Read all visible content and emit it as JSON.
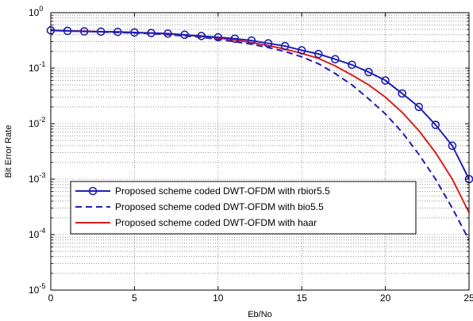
{
  "chart_data": {
    "type": "line",
    "title": "",
    "xlabel": "Eb/No",
    "ylabel": "Bit Error Rate",
    "xlim": [
      0,
      25
    ],
    "ylim": [
      1e-05,
      1
    ],
    "yscale": "log",
    "grid": true,
    "legend_position": "lower-left",
    "x_ticks": [
      0,
      5,
      10,
      15,
      20,
      25
    ],
    "y_ticks": [
      {
        "base": "10",
        "exp": "-5",
        "value": 1e-05
      },
      {
        "base": "10",
        "exp": "-4",
        "value": 0.0001
      },
      {
        "base": "10",
        "exp": "-3",
        "value": 0.001
      },
      {
        "base": "10",
        "exp": "-2",
        "value": 0.01
      },
      {
        "base": "10",
        "exp": "-1",
        "value": 0.1
      },
      {
        "base": "10",
        "exp": "0",
        "value": 1
      }
    ],
    "series": [
      {
        "name": "Proposed scheme coded DWT-OFDM with rbior5.5",
        "color": "#1f1fb4",
        "style": "solid-circle",
        "x": [
          0,
          1,
          2,
          3,
          4,
          5,
          6,
          7,
          8,
          9,
          10,
          11,
          12,
          13,
          14,
          15,
          16,
          17,
          18,
          19,
          20,
          21,
          22,
          23,
          24,
          25
        ],
        "y": [
          0.48,
          0.47,
          0.46,
          0.455,
          0.45,
          0.44,
          0.43,
          0.42,
          0.4,
          0.38,
          0.36,
          0.34,
          0.315,
          0.28,
          0.25,
          0.21,
          0.18,
          0.145,
          0.115,
          0.085,
          0.06,
          0.035,
          0.02,
          0.0095,
          0.004,
          0.001
        ]
      },
      {
        "name": "Proposed scheme coded DWT-OFDM with bio5.5",
        "color": "#1f1fb4",
        "style": "dashed",
        "x": [
          0,
          1,
          2,
          3,
          4,
          5,
          6,
          7,
          8,
          9,
          10,
          11,
          12,
          13,
          14,
          15,
          16,
          17,
          18,
          19,
          20,
          21,
          22,
          23,
          24,
          25
        ],
        "y": [
          0.48,
          0.47,
          0.46,
          0.45,
          0.44,
          0.43,
          0.42,
          0.4,
          0.38,
          0.36,
          0.33,
          0.3,
          0.27,
          0.235,
          0.2,
          0.16,
          0.12,
          0.08,
          0.05,
          0.028,
          0.015,
          0.007,
          0.0028,
          0.001,
          0.0003,
          8e-05
        ]
      },
      {
        "name": "Proposed scheme coded DWT-OFDM with haar",
        "color": "#d62020",
        "style": "solid",
        "x": [
          0,
          1,
          2,
          3,
          4,
          5,
          6,
          7,
          8,
          9,
          10,
          11,
          12,
          13,
          14,
          15,
          16,
          17,
          18,
          19,
          20,
          21,
          22,
          23,
          24,
          25
        ],
        "y": [
          0.48,
          0.47,
          0.465,
          0.455,
          0.45,
          0.44,
          0.43,
          0.415,
          0.395,
          0.375,
          0.35,
          0.32,
          0.29,
          0.255,
          0.22,
          0.185,
          0.15,
          0.11,
          0.075,
          0.05,
          0.03,
          0.016,
          0.0075,
          0.003,
          0.001,
          0.00025
        ]
      }
    ]
  }
}
